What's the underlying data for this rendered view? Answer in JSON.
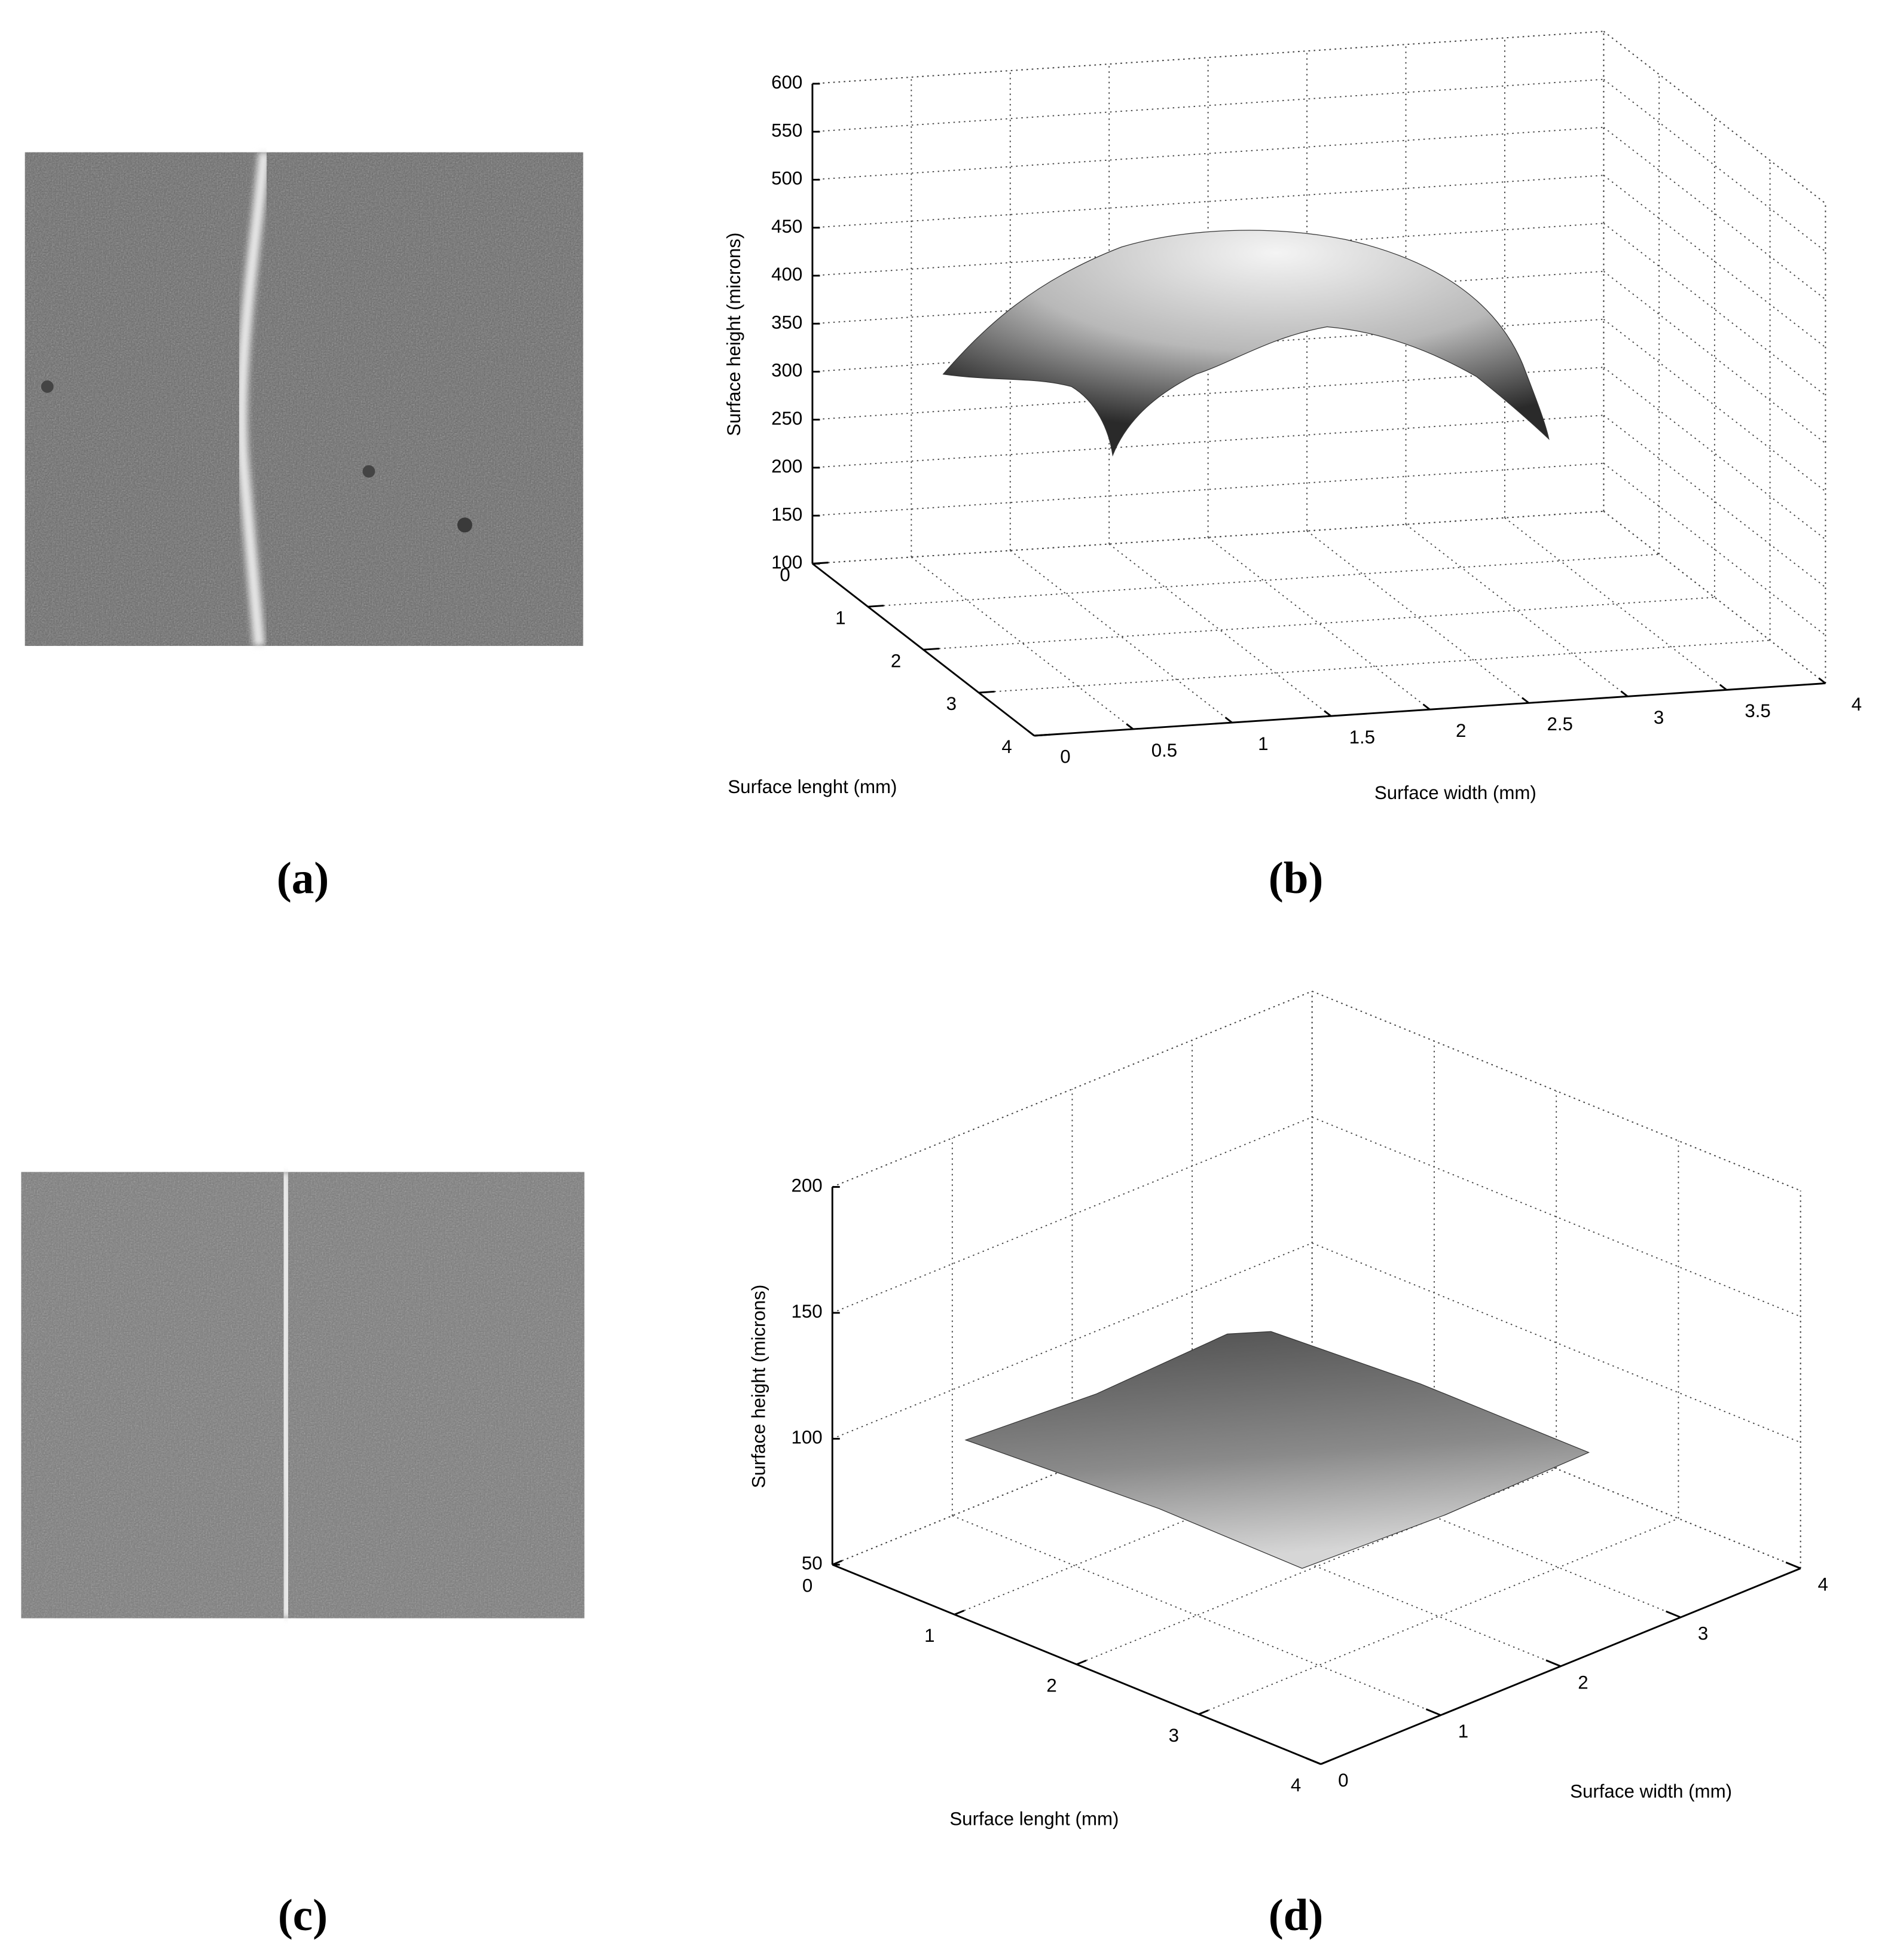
{
  "panels": [
    {
      "label": "(a)"
    },
    {
      "label": "(b)",
      "height_label": "Surface height (microns)",
      "length_label": "Surface lenght (mm)",
      "width_label": "Surface width (mm)",
      "height_ticks": [
        100,
        150,
        200,
        250,
        300,
        350,
        400,
        450,
        500,
        550,
        600
      ],
      "length_ticks": [
        0,
        1,
        2,
        3,
        4
      ],
      "width_ticks": [
        0,
        0.5,
        1,
        1.5,
        2,
        2.5,
        3,
        3.5,
        4
      ]
    },
    {
      "label": "(c)"
    },
    {
      "label": "(d)",
      "height_label": "Surface height (microns)",
      "length_label": "Surface lenght (mm)",
      "width_label": "Surface width (mm)",
      "height_ticks": [
        50,
        100,
        150,
        200
      ],
      "length_ticks": [
        0,
        1,
        2,
        3,
        4
      ],
      "width_ticks": [
        0,
        1,
        2,
        3,
        4
      ]
    }
  ]
}
